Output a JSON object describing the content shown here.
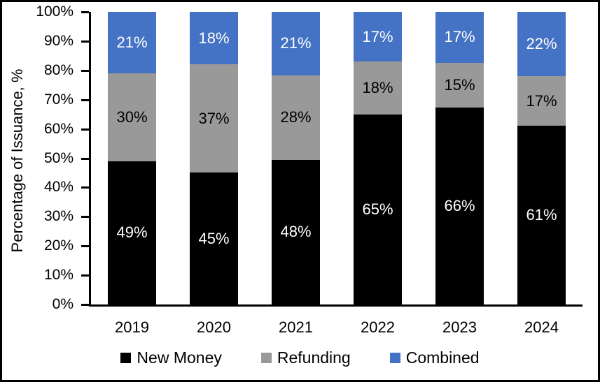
{
  "chart_data": {
    "type": "bar",
    "subtype": "stacked-100-percent",
    "title": "",
    "xlabel": "",
    "ylabel": "Percentage of Issuance, %",
    "categories": [
      "2019",
      "2020",
      "2021",
      "2022",
      "2023",
      "2024"
    ],
    "series": [
      {
        "name": "New Money",
        "color": "#000000",
        "label_color": "#FFFFFF",
        "values": [
          49,
          45,
          48,
          65,
          66,
          61
        ]
      },
      {
        "name": "Refunding",
        "color": "#999999",
        "label_color": "#000000",
        "values": [
          30,
          37,
          28,
          18,
          15,
          17
        ]
      },
      {
        "name": "Combined",
        "color": "#4472C4",
        "label_color": "#FFFFFF",
        "values": [
          21,
          18,
          21,
          17,
          17,
          22
        ]
      }
    ],
    "stack_order_bottom_to_top": [
      "New Money",
      "Refunding",
      "Combined"
    ],
    "value_suffix": "%",
    "y_ticks": [
      "100%",
      "90%",
      "80%",
      "70%",
      "60%",
      "50%",
      "40%",
      "30%",
      "20%",
      "10%",
      "0%"
    ],
    "ylim": [
      0,
      100
    ],
    "grid": false,
    "legend_position": "bottom",
    "axis_color": "#000000",
    "background_color": "#FFFFFF"
  }
}
